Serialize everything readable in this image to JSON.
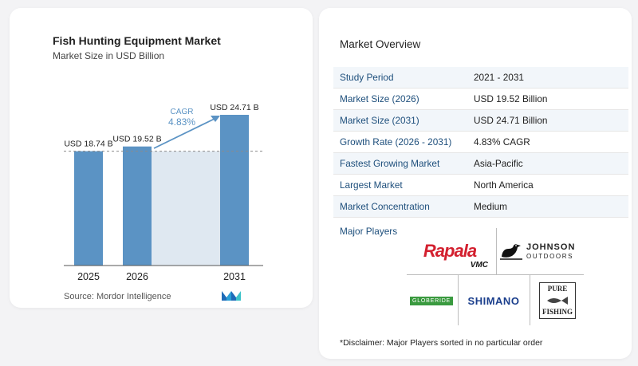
{
  "left_panel": {
    "title": "Fish Hunting Equipment Market",
    "subtitle": "Market Size in USD Billion",
    "source": "Source:  Mordor Intelligence",
    "colors": {
      "bar": "#5b93c4",
      "shade": "#dfe8f1",
      "arrow": "#5b93c4",
      "cagr_label": "#5b93c4"
    }
  },
  "chart_data": {
    "type": "bar",
    "title": "Fish Hunting Equipment Market",
    "subtitle": "Market Size in USD Billion",
    "categories": [
      "2025",
      "2026",
      "2031"
    ],
    "values": [
      18.74,
      19.52,
      24.71
    ],
    "value_labels": [
      "USD 18.74 B",
      "USD 19.52 B",
      "USD 24.71 B"
    ],
    "unit": "USD Billion",
    "annotation": {
      "label": "CAGR",
      "value": "4.83%"
    },
    "dashed_reference_value": 18.74,
    "grid": false,
    "legend": "none"
  },
  "overview": {
    "title": "Market Overview",
    "rows": [
      {
        "label": "Study Period",
        "value": "2021 - 2031"
      },
      {
        "label": "Market Size (2026)",
        "value": "USD 19.52 Billion"
      },
      {
        "label": "Market Size (2031)",
        "value": "USD 24.71 Billion"
      },
      {
        "label": "Growth Rate (2026 - 2031)",
        "value": "4.83% CAGR"
      },
      {
        "label": "Fastest Growing Market",
        "value": "Asia-Pacific"
      },
      {
        "label": "Largest Market",
        "value": "North America"
      },
      {
        "label": "Market Concentration",
        "value": "Medium"
      }
    ],
    "players_label": "Major Players",
    "players": {
      "rapala": "Rapala",
      "vmc": "VMC",
      "johnson": "JOHNSON",
      "outdoors": "OUTDOORS",
      "globeride": "GLOBERIDE",
      "shimano": "SHIMANO",
      "pure": "PURE",
      "fishing": "FISHING"
    },
    "disclaimer": "*Disclaimer: Major Players sorted in no particular order"
  }
}
